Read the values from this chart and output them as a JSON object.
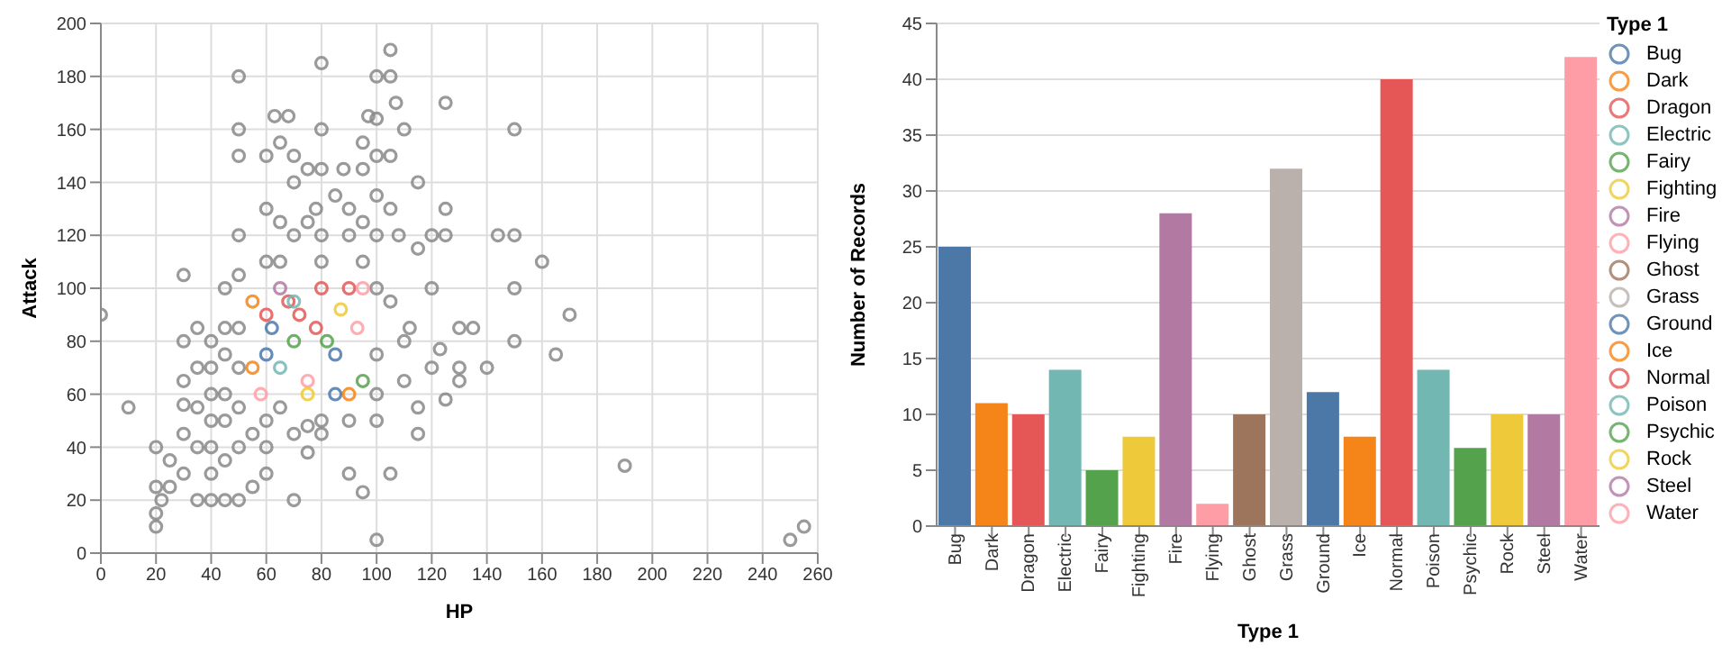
{
  "chart_data": [
    {
      "type": "scatter",
      "xlabel": "HP",
      "ylabel": "Attack",
      "xlim": [
        0,
        260
      ],
      "xticks": [
        0,
        20,
        40,
        60,
        80,
        100,
        120,
        140,
        160,
        180,
        200,
        220,
        240,
        260
      ],
      "ylim": [
        0,
        200
      ],
      "yticks": [
        0,
        20,
        40,
        60,
        80,
        100,
        120,
        140,
        160,
        180,
        200
      ],
      "grid": true,
      "marker": "circle",
      "series": [
        {
          "color": "#888888",
          "x": [
            0,
            10,
            20,
            20,
            20,
            20,
            22,
            25,
            25,
            30,
            30,
            30,
            30,
            30,
            30,
            35,
            35,
            35,
            35,
            35,
            40,
            40,
            40,
            40,
            40,
            40,
            40,
            45,
            45,
            45,
            45,
            45,
            45,
            45,
            50,
            50,
            50,
            50,
            50,
            50,
            50,
            50,
            50,
            50,
            55,
            55,
            60,
            60,
            60,
            60,
            60,
            60,
            63,
            65,
            65,
            65,
            65,
            68,
            70,
            70,
            70,
            70,
            70,
            75,
            75,
            75,
            75,
            78,
            80,
            80,
            80,
            80,
            80,
            80,
            80,
            85,
            88,
            90,
            90,
            90,
            90,
            95,
            95,
            95,
            95,
            95,
            97,
            100,
            100,
            100,
            100,
            100,
            100,
            100,
            100,
            100,
            100,
            105,
            105,
            105,
            105,
            105,
            105,
            107,
            108,
            110,
            110,
            110,
            112,
            115,
            115,
            115,
            115,
            120,
            120,
            120,
            123,
            125,
            125,
            125,
            125,
            130,
            130,
            130,
            135,
            140,
            144,
            150,
            150,
            150,
            150,
            160,
            165,
            170,
            190,
            250,
            255
          ],
          "values": [
            90,
            55,
            40,
            10,
            15,
            25,
            20,
            35,
            25,
            105,
            80,
            65,
            56,
            45,
            30,
            85,
            70,
            55,
            40,
            20,
            80,
            70,
            60,
            50,
            40,
            30,
            20,
            100,
            85,
            75,
            60,
            50,
            35,
            20,
            180,
            160,
            150,
            120,
            105,
            85,
            70,
            55,
            40,
            20,
            45,
            25,
            150,
            130,
            110,
            50,
            40,
            30,
            165,
            155,
            125,
            110,
            55,
            165,
            150,
            140,
            120,
            45,
            20,
            125,
            145,
            48,
            38,
            130,
            185,
            160,
            145,
            120,
            110,
            50,
            45,
            135,
            145,
            130,
            120,
            50,
            30,
            155,
            145,
            125,
            110,
            23,
            165,
            180,
            164,
            150,
            135,
            120,
            100,
            75,
            60,
            50,
            5,
            190,
            180,
            150,
            130,
            95,
            30,
            170,
            120,
            160,
            80,
            65,
            85,
            140,
            115,
            55,
            45,
            100,
            120,
            70,
            77,
            170,
            130,
            120,
            58,
            70,
            65,
            85,
            85,
            70,
            120,
            160,
            120,
            100,
            80,
            110,
            75,
            90,
            33,
            5,
            10
          ]
        },
        {
          "x": [
            55,
            55,
            60,
            60,
            62,
            65,
            65,
            68,
            70,
            72,
            75,
            78,
            80,
            82,
            85,
            87,
            90,
            90,
            93,
            95,
            95,
            58,
            75,
            85,
            70
          ],
          "values": [
            95,
            70,
            90,
            75,
            85,
            100,
            70,
            95,
            80,
            90,
            65,
            85,
            100,
            80,
            75,
            92,
            100,
            60,
            85,
            65,
            100,
            60,
            60,
            60,
            95
          ],
          "colors": [
            "#f58518",
            "#f58518",
            "#e45756",
            "#4c78a8",
            "#4c78a8",
            "#b279a2",
            "#72b7b2",
            "#e45756",
            "#54a24b",
            "#e45756",
            "#ff9da6",
            "#e45756",
            "#e45756",
            "#54a24b",
            "#4c78a8",
            "#eeca3b",
            "#e45756",
            "#f58518",
            "#ff9da6",
            "#54a24b",
            "#ff9da6",
            "#ff9da6",
            "#eeca3b",
            "#4c78a8",
            "#72b7b2"
          ]
        }
      ]
    },
    {
      "type": "bar",
      "stacked": true,
      "xlabel": "Type 1",
      "ylabel": "Number of Records",
      "legend_title": "Type 1",
      "legend": "right",
      "grid": "y",
      "ylim": [
        0,
        45
      ],
      "yticks": [
        0,
        5,
        10,
        15,
        20,
        25,
        30,
        35,
        40,
        45
      ],
      "categories": [
        "Bug",
        "Dark",
        "Dragon",
        "Electric",
        "Fairy",
        "Fighting",
        "Fire",
        "Flying",
        "Ghost",
        "Grass",
        "Ground",
        "Ice",
        "Normal",
        "Poison",
        "Psychic",
        "Rock",
        "Steel",
        "Water"
      ],
      "series": [
        {
          "name": "Bug",
          "color": "#4c78a8",
          "values": [
            25,
            null,
            null,
            null,
            null,
            null,
            null,
            null,
            null,
            null,
            null,
            null,
            null,
            null,
            null,
            null,
            null,
            null
          ]
        },
        {
          "name": "Dark",
          "color": "#f58518",
          "values": [
            null,
            11,
            null,
            null,
            null,
            null,
            null,
            null,
            null,
            null,
            null,
            null,
            null,
            null,
            null,
            null,
            null,
            null
          ]
        },
        {
          "name": "Dragon",
          "color": "#e45756",
          "values": [
            null,
            null,
            10,
            null,
            null,
            null,
            null,
            null,
            null,
            null,
            null,
            null,
            null,
            null,
            null,
            null,
            null,
            null
          ]
        },
        {
          "name": "Electric",
          "color": "#72b7b2",
          "values": [
            null,
            null,
            null,
            14,
            null,
            null,
            null,
            null,
            null,
            null,
            null,
            null,
            null,
            null,
            null,
            null,
            null,
            null
          ]
        },
        {
          "name": "Fairy",
          "color": "#54a24b",
          "values": [
            null,
            null,
            null,
            null,
            5,
            null,
            null,
            null,
            null,
            null,
            null,
            null,
            null,
            null,
            null,
            null,
            null,
            null
          ]
        },
        {
          "name": "Fighting",
          "color": "#eeca3b",
          "values": [
            null,
            null,
            null,
            null,
            null,
            8,
            null,
            null,
            null,
            null,
            null,
            null,
            null,
            null,
            null,
            null,
            null,
            null
          ]
        },
        {
          "name": "Fire",
          "color": "#b279a2",
          "values": [
            null,
            null,
            null,
            null,
            null,
            null,
            28,
            null,
            null,
            null,
            null,
            null,
            null,
            null,
            null,
            null,
            null,
            null
          ]
        },
        {
          "name": "Flying",
          "color": "#ff9da6",
          "values": [
            null,
            null,
            null,
            null,
            null,
            null,
            null,
            2,
            null,
            null,
            null,
            null,
            null,
            null,
            null,
            null,
            null,
            null
          ]
        },
        {
          "name": "Ghost",
          "color": "#9d755d",
          "values": [
            null,
            null,
            null,
            null,
            null,
            null,
            null,
            null,
            10,
            null,
            null,
            null,
            null,
            null,
            null,
            null,
            null,
            null
          ]
        },
        {
          "name": "Grass",
          "color": "#bab0ac",
          "values": [
            null,
            null,
            null,
            null,
            null,
            null,
            null,
            null,
            null,
            32,
            null,
            null,
            null,
            null,
            null,
            null,
            null,
            null
          ]
        },
        {
          "name": "Ground",
          "color": "#4c78a8",
          "values": [
            null,
            null,
            null,
            null,
            null,
            null,
            null,
            null,
            null,
            null,
            12,
            null,
            null,
            null,
            null,
            null,
            null,
            null
          ]
        },
        {
          "name": "Ice",
          "color": "#f58518",
          "values": [
            null,
            null,
            null,
            null,
            null,
            null,
            null,
            null,
            null,
            null,
            null,
            8,
            null,
            null,
            null,
            null,
            null,
            null
          ]
        },
        {
          "name": "Normal",
          "color": "#e45756",
          "values": [
            null,
            null,
            null,
            null,
            null,
            null,
            null,
            null,
            null,
            null,
            null,
            null,
            40,
            null,
            null,
            null,
            null,
            null
          ]
        },
        {
          "name": "Poison",
          "color": "#72b7b2",
          "values": [
            null,
            null,
            null,
            null,
            null,
            null,
            null,
            null,
            null,
            null,
            null,
            null,
            null,
            14,
            null,
            null,
            null,
            null
          ]
        },
        {
          "name": "Psychic",
          "color": "#54a24b",
          "values": [
            null,
            null,
            null,
            null,
            null,
            null,
            null,
            null,
            null,
            null,
            null,
            null,
            null,
            null,
            7,
            null,
            null,
            null
          ]
        },
        {
          "name": "Rock",
          "color": "#eeca3b",
          "values": [
            null,
            null,
            null,
            null,
            null,
            null,
            null,
            null,
            null,
            null,
            null,
            null,
            null,
            null,
            null,
            10,
            null,
            null
          ]
        },
        {
          "name": "Steel",
          "color": "#b279a2",
          "values": [
            null,
            null,
            null,
            null,
            null,
            null,
            null,
            null,
            null,
            null,
            null,
            null,
            null,
            null,
            null,
            null,
            10,
            null
          ]
        },
        {
          "name": "Water",
          "color": "#ff9da6",
          "values": [
            null,
            null,
            null,
            null,
            null,
            null,
            null,
            null,
            null,
            null,
            null,
            null,
            null,
            null,
            null,
            null,
            null,
            42
          ]
        }
      ]
    }
  ]
}
